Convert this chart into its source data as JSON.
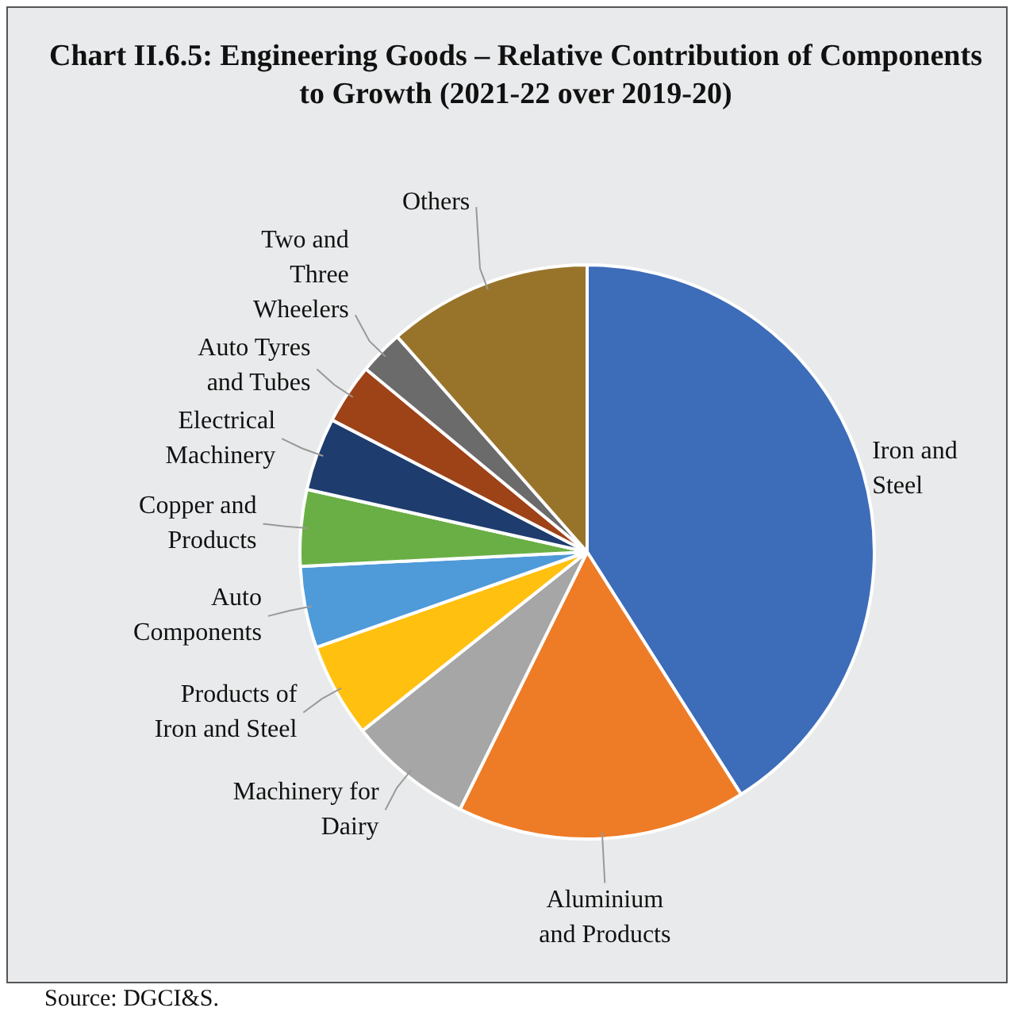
{
  "chart_data": {
    "type": "pie",
    "title": "Chart II.6.5: Engineering Goods – Relative Contribution of Components to Growth (2021-22 over 2019-20)",
    "categories": [
      "Iron and Steel",
      "Aluminium and Products",
      "Machinery for Dairy",
      "Products of Iron and Steel",
      "Auto Components",
      "Copper and Products",
      "Electrical Machinery",
      "Auto Tyres and Tubes",
      "Two and Three Wheelers",
      "Others"
    ],
    "values": [
      41,
      16.3,
      7,
      5.3,
      4.6,
      4.3,
      4.1,
      3.4,
      2.5,
      11.5
    ],
    "colors": [
      "#3d6cb9",
      "#ee7b26",
      "#a6a6a6",
      "#ffc010",
      "#4f9ad9",
      "#6aaf45",
      "#1f3c6e",
      "#9e4218",
      "#6b6b6b",
      "#98742b"
    ],
    "annotations": [
      "Source: DGCI&S."
    ]
  }
}
